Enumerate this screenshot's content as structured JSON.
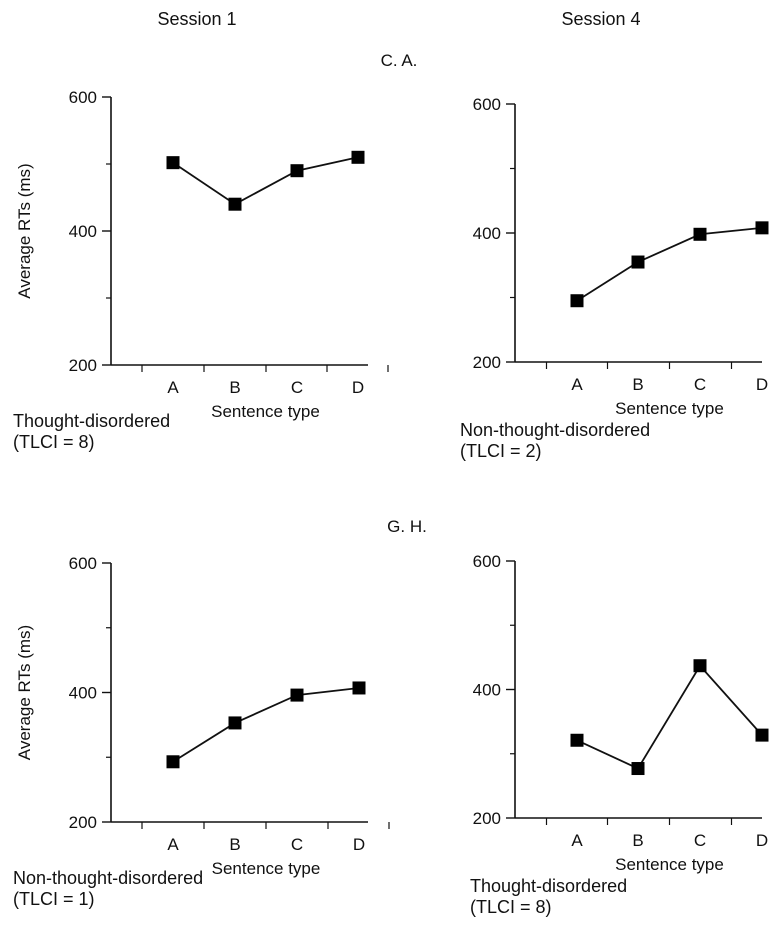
{
  "headers": {
    "session_left": "Session 1",
    "session_right": "Session 4"
  },
  "patients": [
    "C. A.",
    "G. H."
  ],
  "colors": {
    "line": "#111111",
    "marker": "#000000",
    "axis": "#111111"
  },
  "chart_data": [
    {
      "type": "line",
      "patient": "C. A.",
      "session": "Session 1",
      "categories": [
        "A",
        "B",
        "C",
        "D"
      ],
      "series": [
        {
          "values": [
            502,
            440,
            490,
            510
          ]
        }
      ],
      "xlabel": "Sentence type",
      "ylabel": "Average RTs (ms)",
      "yticks": [
        "200",
        "400",
        "600"
      ],
      "ylim": [
        200,
        600
      ],
      "caption_line1": "Thought-disordered",
      "caption_line2": "(TLCI = 8)"
    },
    {
      "type": "line",
      "patient": "C. A.",
      "session": "Session 4",
      "categories": [
        "A",
        "B",
        "C",
        "D"
      ],
      "series": [
        {
          "values": [
            295,
            355,
            398,
            408
          ]
        }
      ],
      "xlabel": "Sentence type",
      "ylabel": "",
      "yticks": [
        "200",
        "400",
        "600"
      ],
      "ylim": [
        200,
        600
      ],
      "caption_line1": "Non-thought-disordered",
      "caption_line2": "(TLCI = 2)"
    },
    {
      "type": "line",
      "patient": "G. H.",
      "session": "Session 1",
      "categories": [
        "A",
        "B",
        "C",
        "D"
      ],
      "series": [
        {
          "values": [
            293,
            353,
            396,
            407
          ]
        }
      ],
      "xlabel": "Sentence type",
      "ylabel": "Average RTs (ms)",
      "yticks": [
        "200",
        "400",
        "600"
      ],
      "ylim": [
        200,
        600
      ],
      "caption_line1": "Non-thought-disordered",
      "caption_line2": "(TLCI = 1)"
    },
    {
      "type": "line",
      "patient": "G. H.",
      "session": "Session 4",
      "categories": [
        "A",
        "B",
        "C",
        "D"
      ],
      "series": [
        {
          "values": [
            321,
            277,
            437,
            329
          ]
        }
      ],
      "xlabel": "Sentence type",
      "ylabel": "",
      "yticks": [
        "200",
        "400",
        "600"
      ],
      "ylim": [
        200,
        600
      ],
      "caption_line1": "Thought-disordered",
      "caption_line2": "(TLCI = 8)"
    }
  ]
}
